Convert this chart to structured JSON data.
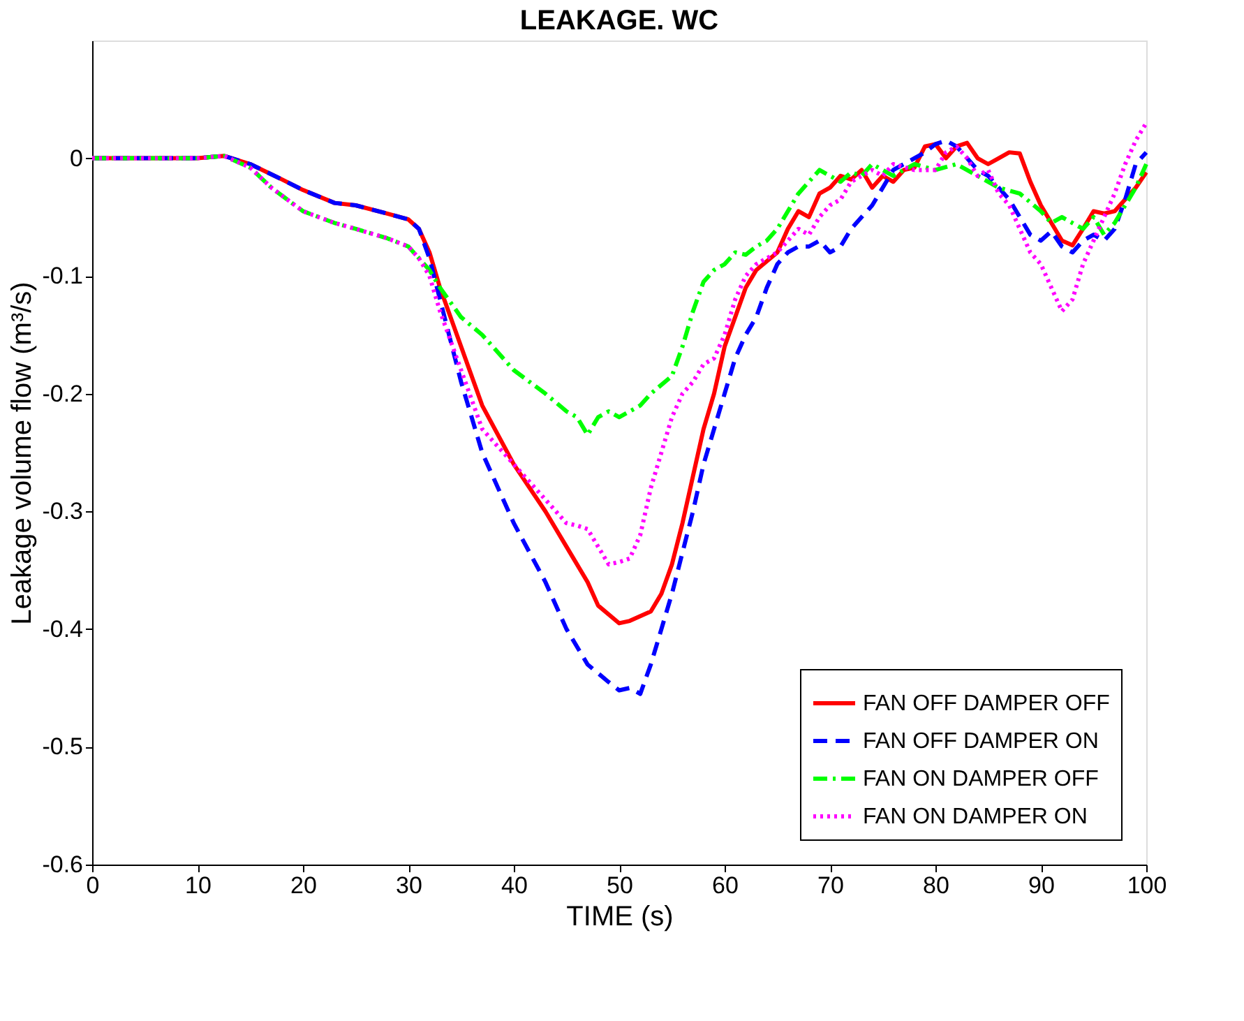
{
  "chart_data": {
    "type": "line",
    "title": "LEAKAGE. WC",
    "xlabel": "TIME (s)",
    "ylabel": "Leakage volume flow (m³/s)",
    "xlim": [
      0,
      100
    ],
    "xticks": [
      0,
      10,
      20,
      30,
      40,
      50,
      60,
      70,
      80,
      90,
      100
    ],
    "ylim": [
      -0.6,
      0.1
    ],
    "yticks": [
      -0.6,
      -0.5,
      -0.4,
      -0.3,
      -0.2,
      -0.1,
      0
    ],
    "grid": false,
    "legend": "bottom right",
    "series": [
      {
        "name": "FAN OFF DAMPER OFF",
        "color": "#ff0000",
        "line_style": "solid",
        "x": [
          0,
          10,
          12.5,
          15,
          18,
          20,
          23,
          25,
          28,
          30,
          31,
          32,
          33,
          35,
          37,
          40,
          43,
          45,
          47,
          48,
          50,
          51,
          53,
          54,
          55,
          56,
          57,
          58,
          59,
          60,
          61,
          62,
          63,
          65,
          66,
          67,
          68,
          69,
          70,
          71,
          72,
          73,
          74,
          75,
          76,
          77,
          78,
          79,
          80,
          81,
          82,
          83,
          84,
          85,
          86,
          87,
          88,
          89,
          90,
          92,
          93,
          94,
          95,
          96,
          97,
          98,
          99,
          100
        ],
        "values": [
          0,
          0,
          0.002,
          -0.005,
          -0.018,
          -0.027,
          -0.038,
          -0.04,
          -0.047,
          -0.052,
          -0.06,
          -0.08,
          -0.11,
          -0.16,
          -0.21,
          -0.26,
          -0.3,
          -0.33,
          -0.36,
          -0.38,
          -0.395,
          -0.393,
          -0.385,
          -0.37,
          -0.345,
          -0.31,
          -0.27,
          -0.23,
          -0.2,
          -0.16,
          -0.135,
          -0.11,
          -0.095,
          -0.08,
          -0.06,
          -0.045,
          -0.05,
          -0.03,
          -0.025,
          -0.015,
          -0.018,
          -0.01,
          -0.025,
          -0.015,
          -0.02,
          -0.01,
          -0.008,
          0.01,
          0.012,
          0,
          0.01,
          0.013,
          0,
          -0.005,
          0,
          0.005,
          0.004,
          -0.02,
          -0.04,
          -0.07,
          -0.074,
          -0.06,
          -0.045,
          -0.047,
          -0.045,
          -0.035,
          -0.025,
          -0.012
        ]
      },
      {
        "name": "FAN OFF DAMPER ON",
        "color": "#0000ff",
        "line_style": "dashed",
        "x": [
          0,
          10,
          12.5,
          15,
          18,
          20,
          23,
          25,
          28,
          30,
          31,
          32,
          33,
          35,
          37,
          40,
          43,
          45,
          47,
          49,
          50,
          51,
          52,
          53,
          55,
          57,
          58,
          59,
          60,
          61,
          62,
          63,
          64,
          65,
          66,
          67,
          68,
          69,
          70,
          71,
          72,
          73,
          74,
          75,
          76,
          77,
          78,
          79,
          80,
          81,
          82,
          83,
          84,
          85,
          86,
          87,
          88,
          89,
          90,
          91,
          92,
          93,
          94,
          95,
          96,
          97,
          98,
          99,
          100
        ],
        "values": [
          0,
          0,
          0.002,
          -0.005,
          -0.018,
          -0.027,
          -0.038,
          -0.04,
          -0.047,
          -0.052,
          -0.06,
          -0.085,
          -0.12,
          -0.19,
          -0.25,
          -0.31,
          -0.36,
          -0.4,
          -0.43,
          -0.445,
          -0.452,
          -0.45,
          -0.455,
          -0.43,
          -0.37,
          -0.3,
          -0.26,
          -0.23,
          -0.2,
          -0.17,
          -0.15,
          -0.135,
          -0.11,
          -0.09,
          -0.08,
          -0.075,
          -0.075,
          -0.07,
          -0.08,
          -0.075,
          -0.06,
          -0.05,
          -0.04,
          -0.025,
          -0.01,
          -0.005,
          0,
          0.005,
          0.012,
          0.015,
          0.01,
          0,
          -0.01,
          -0.015,
          -0.025,
          -0.035,
          -0.05,
          -0.065,
          -0.07,
          -0.062,
          -0.075,
          -0.08,
          -0.07,
          -0.065,
          -0.07,
          -0.06,
          -0.035,
          -0.005,
          0.005
        ]
      },
      {
        "name": "FAN ON DAMPER OFF",
        "color": "#00ff00",
        "line_style": "dashdot",
        "x": [
          0,
          10,
          12.5,
          15,
          17,
          20,
          23,
          25,
          28,
          30,
          32,
          33,
          35,
          37,
          40,
          43,
          45,
          46,
          47,
          48,
          49,
          50,
          52,
          53,
          55,
          56,
          57,
          58,
          59,
          60,
          61,
          62,
          63,
          64,
          65,
          66,
          67,
          68,
          69,
          70,
          71,
          72,
          73,
          74,
          75,
          76,
          78,
          80,
          82,
          84,
          86,
          88,
          90,
          91,
          92,
          93,
          94,
          95,
          96,
          97,
          98,
          99,
          100
        ],
        "values": [
          0,
          0,
          0.002,
          -0.008,
          -0.025,
          -0.045,
          -0.055,
          -0.06,
          -0.068,
          -0.075,
          -0.095,
          -0.11,
          -0.135,
          -0.15,
          -0.18,
          -0.2,
          -0.215,
          -0.22,
          -0.235,
          -0.22,
          -0.215,
          -0.22,
          -0.21,
          -0.2,
          -0.185,
          -0.16,
          -0.13,
          -0.105,
          -0.095,
          -0.09,
          -0.08,
          -0.082,
          -0.075,
          -0.07,
          -0.06,
          -0.045,
          -0.03,
          -0.02,
          -0.01,
          -0.015,
          -0.02,
          -0.012,
          -0.015,
          -0.005,
          -0.01,
          -0.015,
          -0.005,
          -0.01,
          -0.005,
          -0.015,
          -0.025,
          -0.03,
          -0.045,
          -0.055,
          -0.05,
          -0.055,
          -0.06,
          -0.05,
          -0.065,
          -0.055,
          -0.04,
          -0.025,
          -0.005
        ]
      },
      {
        "name": "FAN ON DAMPER ON",
        "color": "#ff00ff",
        "line_style": "dotted",
        "x": [
          0,
          10,
          12.5,
          15,
          17,
          20,
          23,
          25,
          28,
          30,
          31,
          32,
          33,
          35,
          37,
          40,
          43,
          45,
          46,
          47,
          48,
          49,
          50,
          51,
          52,
          53,
          54,
          55,
          56,
          57,
          58,
          59,
          60,
          61,
          62,
          63,
          64,
          65,
          66,
          67,
          68,
          69,
          70,
          71,
          72,
          73,
          74,
          75,
          76,
          78,
          80,
          81,
          82,
          83,
          84,
          85,
          86,
          87,
          88,
          89,
          90,
          91,
          92,
          93,
          94,
          95,
          96,
          97,
          98,
          99,
          100
        ],
        "values": [
          0,
          0,
          0.002,
          -0.008,
          -0.025,
          -0.045,
          -0.055,
          -0.06,
          -0.068,
          -0.075,
          -0.085,
          -0.1,
          -0.13,
          -0.18,
          -0.23,
          -0.26,
          -0.29,
          -0.31,
          -0.312,
          -0.315,
          -0.33,
          -0.345,
          -0.343,
          -0.34,
          -0.32,
          -0.28,
          -0.25,
          -0.22,
          -0.2,
          -0.19,
          -0.175,
          -0.17,
          -0.15,
          -0.12,
          -0.1,
          -0.09,
          -0.085,
          -0.08,
          -0.07,
          -0.06,
          -0.065,
          -0.05,
          -0.04,
          -0.035,
          -0.02,
          -0.015,
          -0.01,
          -0.015,
          -0.005,
          -0.01,
          -0.01,
          0.005,
          0.01,
          0,
          -0.015,
          -0.01,
          -0.03,
          -0.04,
          -0.06,
          -0.08,
          -0.09,
          -0.11,
          -0.13,
          -0.12,
          -0.09,
          -0.07,
          -0.05,
          -0.03,
          -0.005,
          0.015,
          0.03
        ]
      }
    ]
  }
}
